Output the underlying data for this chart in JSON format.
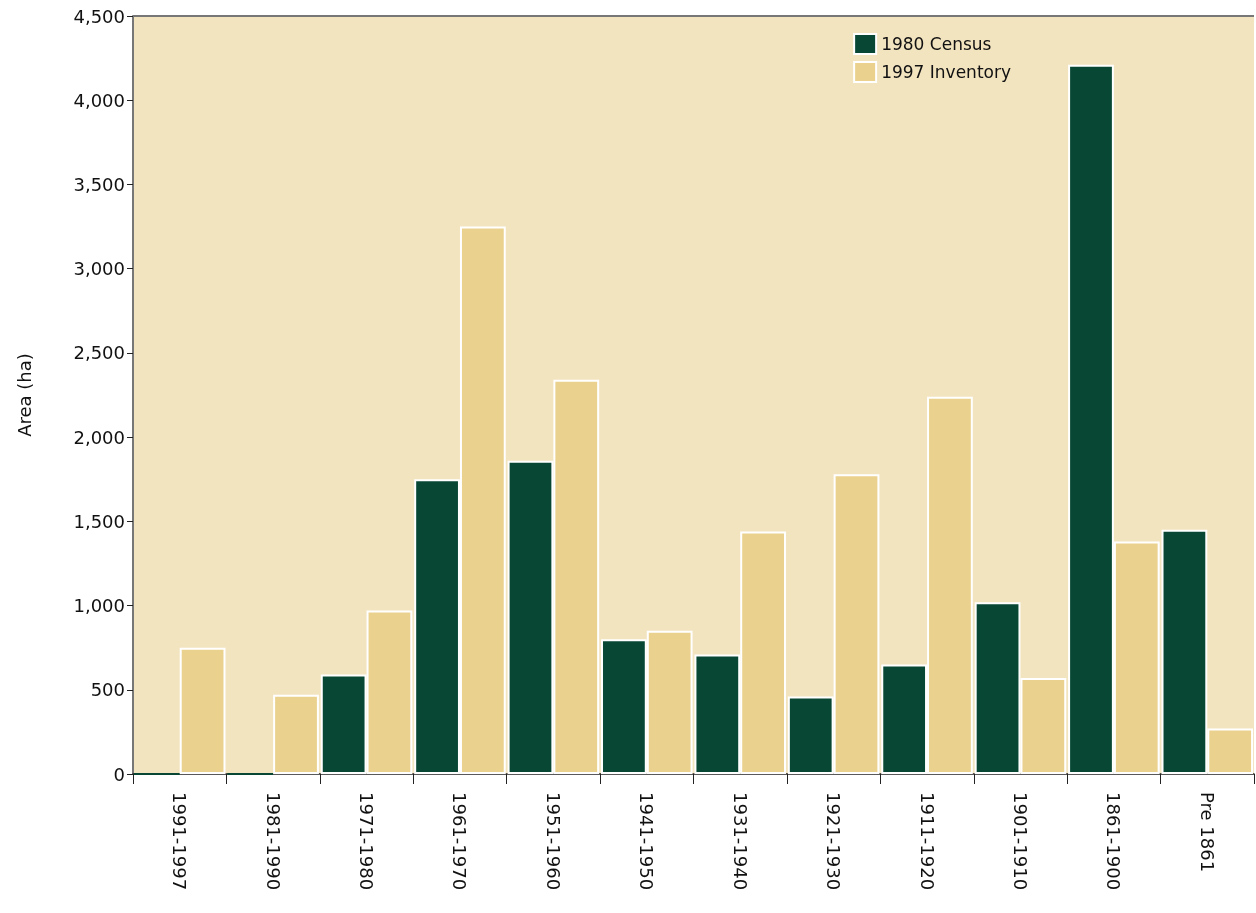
{
  "chart_data": {
    "type": "bar",
    "ylabel": "Area (ha)",
    "categories": [
      "1991-1997",
      "1981-1990",
      "1971-1980",
      "1961-1970",
      "1951-1960",
      "1941-1950",
      "1931-1940",
      "1921-1930",
      "1911-1920",
      "1901-1910",
      "1861-1900",
      "Pre 1861"
    ],
    "series": [
      {
        "name": "1980 Census",
        "color": "#074733",
        "values": [
          0,
          0,
          590,
          1750,
          1860,
          800,
          710,
          460,
          650,
          1020,
          4210,
          1450
        ]
      },
      {
        "name": "1997 Inventory",
        "color": "#ead18e",
        "values": [
          750,
          470,
          970,
          3250,
          2340,
          850,
          1440,
          1780,
          2240,
          570,
          1380,
          270
        ]
      }
    ],
    "ylim": [
      0,
      4500
    ],
    "yticks": [
      0,
      500,
      {
        "value": 1000,
        "label": "1,000"
      },
      {
        "value": 1500,
        "label": "1,500"
      },
      {
        "value": 2000,
        "label": "2,000"
      },
      {
        "value": 2500,
        "label": "2,500"
      },
      {
        "value": 3000,
        "label": "3,000"
      },
      {
        "value": 3500,
        "label": "3,500"
      },
      {
        "value": 4000,
        "label": "4,000"
      },
      {
        "value": 4500,
        "label": "4,500"
      }
    ],
    "legend": "top right"
  }
}
